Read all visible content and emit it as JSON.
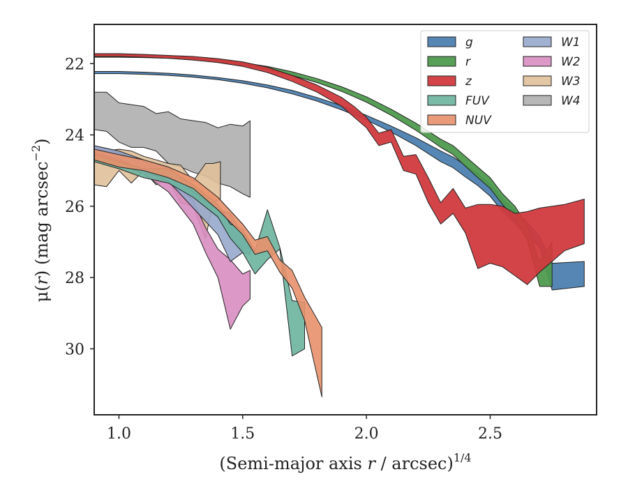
{
  "chart_data": {
    "type": "area",
    "title": "",
    "xlabel": "(Semi-major axis r / arcsec)^1/4",
    "ylabel": "μ(r) (mag arcsec^−2)",
    "xlabel_parts": {
      "pre": "(Semi-major axis ",
      "var": "r",
      "post": " / arcsec)",
      "exp": "1/4"
    },
    "ylabel_parts": {
      "mu": "μ(",
      "var": "r",
      "close": ")",
      "unit": " (mag arcsec",
      "exp": "−2",
      "end": ")"
    },
    "xlim": [
      0.9,
      2.93
    ],
    "ylim": [
      31.85,
      20.9
    ],
    "y_inverted": true,
    "grid": false,
    "legend_position": "top-right",
    "legend_columns": 2,
    "xticks": [
      1.0,
      1.5,
      2.0,
      2.5
    ],
    "xtick_labels": [
      "1.0",
      "1.5",
      "2.0",
      "2.5"
    ],
    "yticks": [
      22,
      24,
      26,
      28,
      30
    ],
    "ytick_labels": [
      "22",
      "24",
      "26",
      "28",
      "30"
    ],
    "series": [
      {
        "name": "g",
        "color": "#4c7fb0",
        "opacity": 0.95,
        "x": [
          0.9,
          1.0,
          1.1,
          1.2,
          1.3,
          1.4,
          1.5,
          1.6,
          1.7,
          1.8,
          1.9,
          2.0,
          2.1,
          2.2,
          2.3,
          2.35,
          2.4,
          2.45,
          2.5,
          2.55,
          2.6,
          2.65,
          2.7,
          2.75,
          2.88
        ],
        "y_low": [
          22.28,
          22.28,
          22.3,
          22.33,
          22.38,
          22.45,
          22.55,
          22.68,
          22.85,
          23.05,
          23.3,
          23.58,
          23.92,
          24.3,
          24.75,
          24.92,
          25.18,
          25.42,
          25.72,
          26.15,
          26.48,
          26.85,
          27.15,
          28.35,
          28.25
        ],
        "y_high": [
          22.22,
          22.22,
          22.24,
          22.27,
          22.32,
          22.39,
          22.48,
          22.6,
          22.75,
          22.95,
          23.18,
          23.45,
          23.75,
          24.08,
          24.45,
          24.62,
          24.85,
          25.1,
          25.38,
          25.8,
          26.12,
          26.45,
          26.85,
          27.6,
          27.55
        ]
      },
      {
        "name": "r",
        "color": "#4f9a4f",
        "opacity": 0.95,
        "x": [
          0.9,
          1.0,
          1.1,
          1.2,
          1.3,
          1.4,
          1.5,
          1.6,
          1.7,
          1.8,
          1.9,
          2.0,
          2.1,
          2.2,
          2.3,
          2.35,
          2.4,
          2.45,
          2.5,
          2.55,
          2.6,
          2.65,
          2.7,
          2.75
        ],
        "y_low": [
          21.82,
          21.82,
          21.83,
          21.85,
          21.9,
          21.96,
          22.05,
          22.17,
          22.33,
          22.53,
          22.78,
          23.08,
          23.45,
          23.87,
          24.35,
          24.55,
          24.88,
          25.2,
          25.5,
          25.95,
          26.35,
          26.95,
          28.25,
          28.25
        ],
        "y_high": [
          21.75,
          21.75,
          21.76,
          21.78,
          21.83,
          21.89,
          21.97,
          22.08,
          22.23,
          22.42,
          22.65,
          22.93,
          23.28,
          23.67,
          24.12,
          24.3,
          24.6,
          24.9,
          25.2,
          25.65,
          26.0,
          26.55,
          27.55,
          27.0
        ]
      },
      {
        "name": "z",
        "color": "#d03a3e",
        "opacity": 0.95,
        "x": [
          0.9,
          1.0,
          1.1,
          1.2,
          1.3,
          1.4,
          1.5,
          1.6,
          1.7,
          1.8,
          1.9,
          1.95,
          2.0,
          2.05,
          2.1,
          2.15,
          2.2,
          2.25,
          2.3,
          2.35,
          2.4,
          2.45,
          2.5,
          2.55,
          2.6,
          2.65,
          2.7,
          2.8,
          2.88
        ],
        "y_low": [
          21.8,
          21.8,
          21.82,
          21.85,
          21.9,
          21.97,
          22.08,
          22.25,
          22.5,
          22.8,
          23.2,
          23.5,
          23.8,
          24.3,
          24.2,
          25.0,
          25.1,
          25.9,
          26.5,
          26.2,
          26.75,
          27.75,
          27.6,
          27.7,
          27.95,
          28.2,
          27.85,
          27.25,
          27.05
        ],
        "y_high": [
          21.72,
          21.72,
          21.74,
          21.77,
          21.8,
          21.86,
          21.95,
          22.1,
          22.33,
          22.6,
          22.95,
          23.2,
          23.5,
          23.95,
          23.85,
          24.6,
          24.55,
          25.2,
          25.9,
          25.5,
          26.05,
          25.95,
          25.95,
          26.0,
          26.2,
          26.15,
          26.05,
          25.95,
          25.8
        ]
      },
      {
        "name": "FUV",
        "color": "#6cb49e",
        "opacity": 0.9,
        "x": [
          0.9,
          1.0,
          1.1,
          1.2,
          1.3,
          1.4,
          1.45,
          1.5,
          1.55,
          1.6,
          1.65,
          1.7,
          1.75
        ],
        "y_low": [
          24.75,
          24.95,
          25.2,
          25.35,
          25.75,
          26.3,
          26.9,
          27.3,
          27.9,
          27.5,
          27.2,
          30.2,
          30.0
        ],
        "y_high": [
          24.55,
          24.75,
          24.95,
          24.95,
          25.4,
          25.95,
          26.5,
          26.65,
          27.25,
          26.1,
          27.15,
          28.65,
          28.7
        ]
      },
      {
        "name": "NUV",
        "color": "#e8916c",
        "opacity": 0.9,
        "x": [
          0.9,
          1.0,
          1.1,
          1.2,
          1.3,
          1.4,
          1.5,
          1.55,
          1.6,
          1.65,
          1.7,
          1.75,
          1.82
        ],
        "y_low": [
          24.7,
          24.9,
          25.0,
          25.2,
          25.5,
          26.1,
          26.8,
          27.35,
          27.25,
          27.85,
          28.3,
          29.2,
          31.35
        ],
        "y_high": [
          24.4,
          24.55,
          24.7,
          24.9,
          25.2,
          25.75,
          26.5,
          26.95,
          26.85,
          27.5,
          27.8,
          28.55,
          29.4
        ]
      },
      {
        "name": "W1",
        "color": "#97a8cc",
        "opacity": 0.9,
        "x": [
          0.9,
          1.0,
          1.1,
          1.2,
          1.3,
          1.4,
          1.45,
          1.5,
          1.53
        ],
        "y_low": [
          24.5,
          24.7,
          25.0,
          25.3,
          26.05,
          26.8,
          27.55,
          27.3,
          27.35
        ],
        "y_high": [
          24.3,
          24.45,
          24.7,
          24.9,
          25.6,
          26.1,
          26.2,
          26.8,
          27.0
        ]
      },
      {
        "name": "W2",
        "color": "#d88dc0",
        "opacity": 0.9,
        "x": [
          0.9,
          1.0,
          1.1,
          1.2,
          1.3,
          1.35,
          1.4,
          1.45,
          1.5,
          1.53
        ],
        "y_low": [
          24.6,
          24.8,
          25.1,
          25.6,
          26.5,
          27.3,
          28.0,
          29.45,
          28.8,
          28.6
        ],
        "y_high": [
          24.3,
          24.5,
          24.75,
          25.1,
          25.85,
          26.6,
          27.2,
          27.5,
          27.9,
          27.8
        ]
      },
      {
        "name": "W3",
        "color": "#e0c09a",
        "opacity": 0.9,
        "x": [
          0.9,
          0.95,
          1.0,
          1.05,
          1.1,
          1.15,
          1.2,
          1.25,
          1.3,
          1.35,
          1.38,
          1.41
        ],
        "y_low": [
          25.4,
          25.45,
          25.0,
          25.35,
          25.0,
          25.4,
          25.25,
          25.9,
          26.0,
          26.9,
          25.9,
          25.8
        ],
        "y_high": [
          24.3,
          24.45,
          24.4,
          24.45,
          24.6,
          24.7,
          24.8,
          24.85,
          25.3,
          24.8,
          24.8,
          24.75
        ]
      },
      {
        "name": "W4",
        "color": "#aaaaaa",
        "opacity": 0.85,
        "x": [
          0.9,
          0.95,
          1.0,
          1.05,
          1.1,
          1.15,
          1.2,
          1.25,
          1.3,
          1.35,
          1.4,
          1.45,
          1.5,
          1.53
        ],
        "y_low": [
          23.85,
          23.9,
          24.2,
          24.35,
          24.35,
          24.45,
          24.8,
          24.9,
          25.05,
          25.15,
          25.35,
          25.45,
          25.65,
          25.75
        ],
        "y_high": [
          22.8,
          22.8,
          23.1,
          23.15,
          23.2,
          23.4,
          23.35,
          23.55,
          23.6,
          23.65,
          23.8,
          23.7,
          23.75,
          23.6
        ]
      }
    ]
  }
}
